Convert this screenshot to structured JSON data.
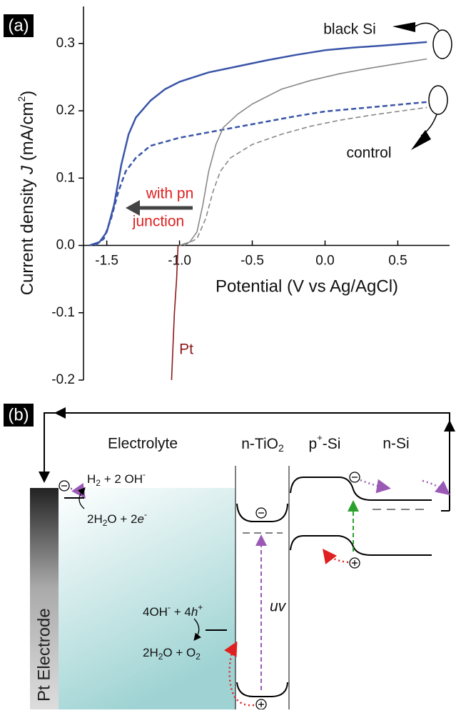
{
  "chart_data": {
    "type": "line",
    "panel": "(a)",
    "xlabel": "Potential (V vs Ag/AgCl)",
    "ylabel": [
      "Current density ",
      "J",
      " (mA/cm",
      "2",
      ")"
    ],
    "xlim": [
      -1.66,
      0.9
    ],
    "ylim": [
      -0.2,
      0.355
    ],
    "xticks": [
      -1.5,
      {
        "value": -1,
        "label": "-1.0"
      },
      -0.5,
      {
        "value": 0,
        "label": "0.0"
      },
      0.5
    ],
    "yticks": [
      -0.2,
      -0.1,
      {
        "value": 0,
        "label": "0.0"
      },
      0.1,
      0.2,
      0.3
    ],
    "annotations": [
      "black Si",
      "control",
      "with pn",
      "junction",
      "Pt"
    ],
    "series": [
      {
        "color": "#3a55a8",
        "dash": false,
        "x": [
          -1.62,
          -1.55,
          -1.5,
          -1.45,
          -1.4,
          -1.35,
          -1.3,
          -1.2,
          -1.1,
          -1.0,
          -0.8,
          -0.6,
          -0.4,
          -0.2,
          0,
          0.2,
          0.4,
          0.7
        ],
        "values": [
          0,
          0.005,
          0.02,
          0.06,
          0.12,
          0.165,
          0.19,
          0.215,
          0.232,
          0.243,
          0.257,
          0.266,
          0.275,
          0.283,
          0.29,
          0.294,
          0.297,
          0.302
        ]
      },
      {
        "color": "#3a55a8",
        "dash": true,
        "x": [
          -1.58,
          -1.52,
          -1.47,
          -1.42,
          -1.37,
          -1.3,
          -1.2,
          -1.0,
          -0.8,
          -0.6,
          -0.4,
          -0.2,
          0,
          0.3,
          0.5,
          0.7
        ],
        "values": [
          0,
          0.01,
          0.04,
          0.08,
          0.11,
          0.13,
          0.148,
          0.16,
          0.168,
          0.176,
          0.184,
          0.192,
          0.199,
          0.205,
          0.209,
          0.213
        ]
      },
      {
        "color": "#888888",
        "dash": false,
        "x": [
          -1.0,
          -0.93,
          -0.88,
          -0.84,
          -0.8,
          -0.75,
          -0.7,
          -0.6,
          -0.5,
          -0.3,
          -0.1,
          0.1,
          0.3,
          0.5,
          0.7
        ],
        "values": [
          0,
          0.005,
          0.02,
          0.06,
          0.11,
          0.15,
          0.175,
          0.195,
          0.21,
          0.232,
          0.245,
          0.255,
          0.263,
          0.27,
          0.277
        ]
      },
      {
        "color": "#888888",
        "dash": true,
        "x": [
          -0.97,
          -0.88,
          -0.82,
          -0.77,
          -0.72,
          -0.65,
          -0.5,
          -0.3,
          -0.1,
          0.1,
          0.3,
          0.5,
          0.7
        ],
        "values": [
          0,
          0.01,
          0.04,
          0.08,
          0.11,
          0.13,
          0.15,
          0.165,
          0.177,
          0.186,
          0.193,
          0.199,
          0.205
        ]
      },
      {
        "color": "#8b1a1a",
        "dash": false,
        "x": [
          -1.01,
          -1.02,
          -1.035,
          -1.045,
          -1.055
        ],
        "values": [
          0,
          -0.05,
          -0.1,
          -0.15,
          -0.2
        ]
      }
    ]
  },
  "diagram": {
    "panel": "(b)",
    "electrolyte": "Electrolyte",
    "tio2": [
      "n-TiO",
      "2"
    ],
    "psi": [
      "p",
      "+",
      "-Si"
    ],
    "nsi": "n-Si",
    "electrode": "Pt Electrode",
    "h2": [
      "H",
      "2",
      " + 2 OH",
      "-"
    ],
    "water_e": [
      "2H",
      "2",
      "O + 2",
      "e",
      "-"
    ],
    "oh": [
      "4OH",
      "-",
      " + 4",
      "h",
      "+"
    ],
    "o2": [
      "2H",
      "2",
      "O + O",
      "2"
    ],
    "uv": "uv"
  }
}
